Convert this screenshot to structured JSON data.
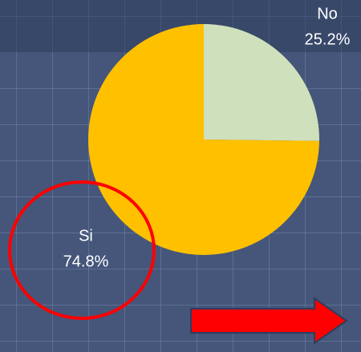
{
  "chart_data": {
    "type": "pie",
    "categories": [
      "No",
      "Si"
    ],
    "values": [
      25.2,
      74.8
    ],
    "value_labels": [
      "25.2%",
      "74.8%"
    ],
    "colors": [
      "#cfe0bc",
      "#ffc000"
    ]
  }
}
